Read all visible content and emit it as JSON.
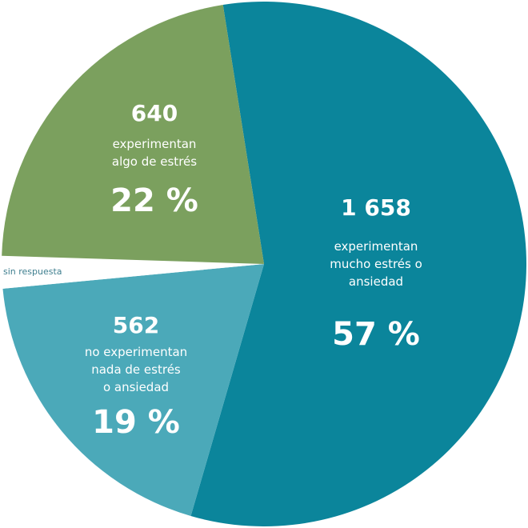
{
  "chart_data": {
    "type": "pie",
    "categories": [
      "experimentan\nmucho estrés o\nansiedad",
      "no experimentan\nnada de estrés\no ansiedad",
      "sin respuesta",
      "experimentan\nalgo de estrés"
    ],
    "values": [
      57,
      19,
      2,
      22
    ],
    "value_labels": [
      "57 %",
      "19 %",
      null,
      "22 %"
    ],
    "counts": [
      1658,
      562,
      null,
      640
    ],
    "count_labels": [
      "1 658",
      "562",
      null,
      "640"
    ],
    "colors": [
      "#0b859b",
      "#4ba9b9",
      "#ffffff",
      "#7ba05e"
    ],
    "label_color": "#3f7f8f"
  }
}
